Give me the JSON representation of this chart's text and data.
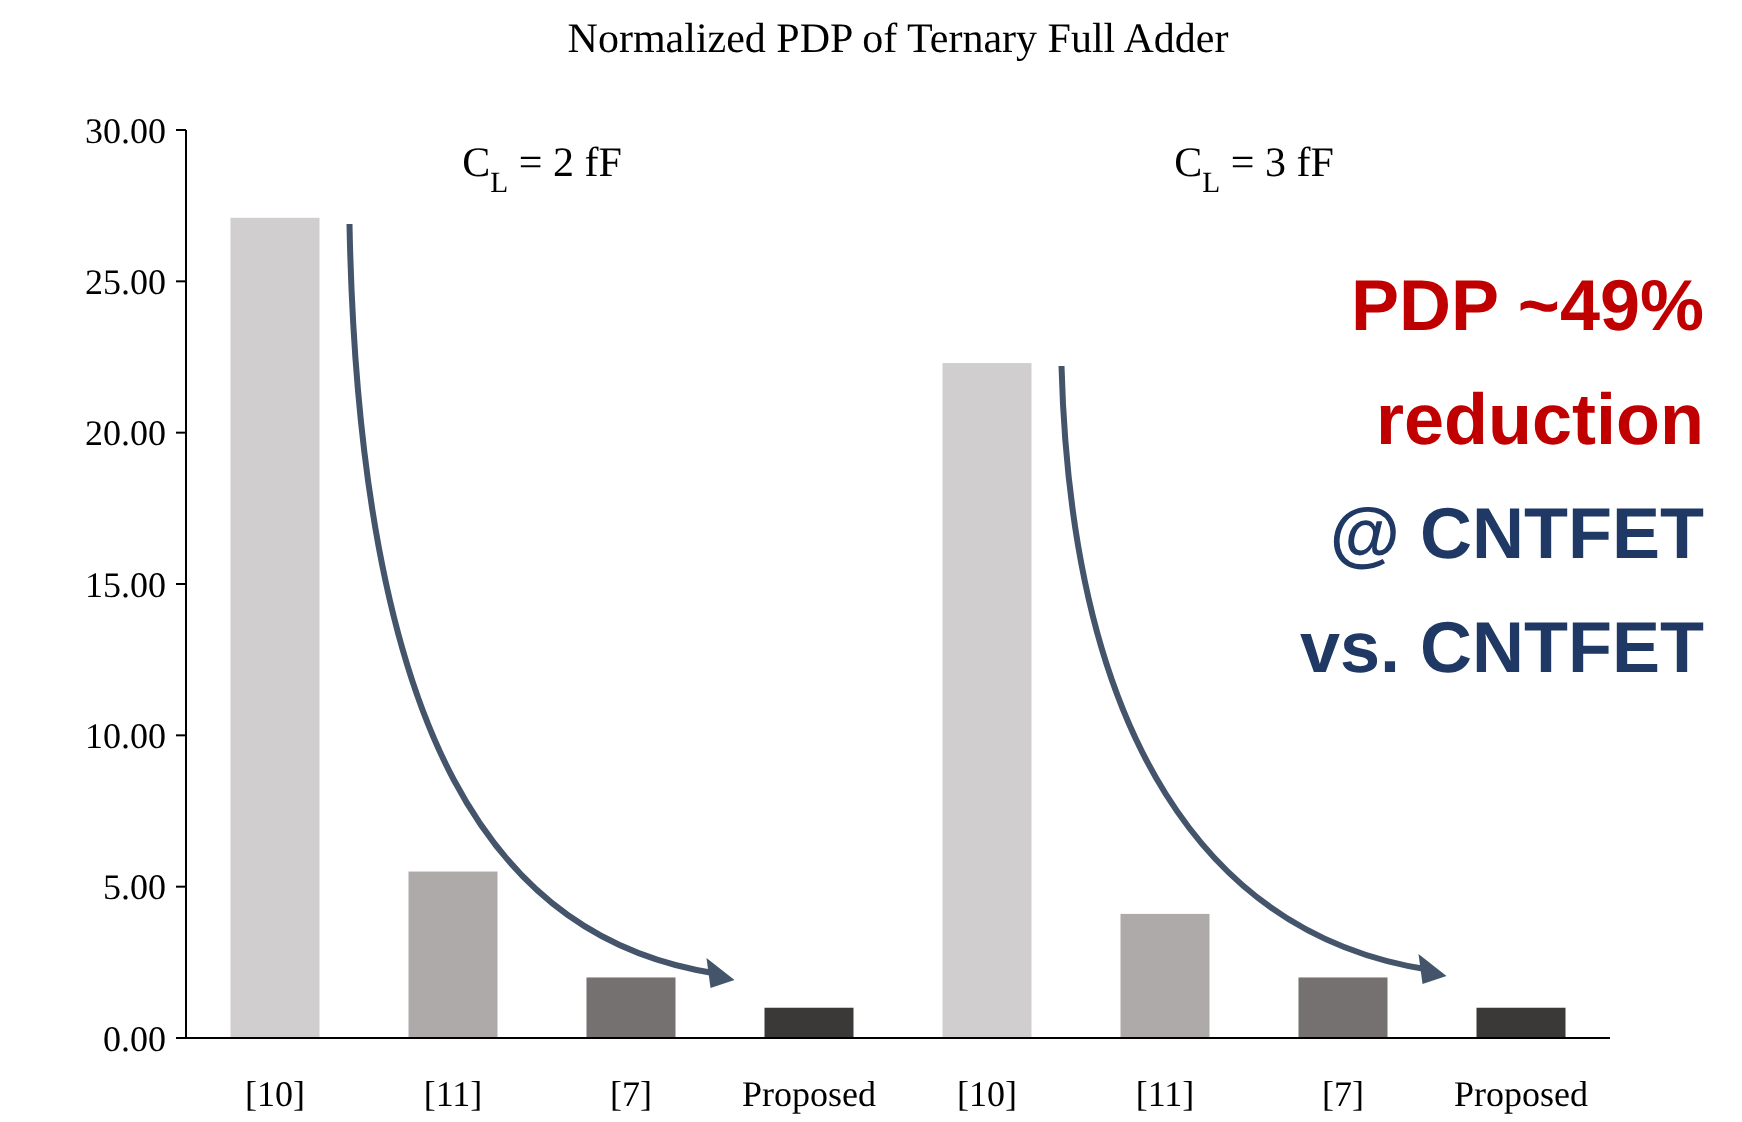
{
  "chart_data": {
    "type": "bar",
    "title": "Normalized PDP of Ternary Full Adder",
    "categories": [
      "[10]",
      "[11]",
      "[7]",
      "Proposed",
      "[10]",
      "[11]",
      "[7]",
      "Proposed"
    ],
    "values": [
      27.1,
      5.5,
      2.0,
      1.0,
      22.3,
      4.1,
      2.0,
      1.0
    ],
    "colors": [
      "#d0cece",
      "#aeaaaa",
      "#767171",
      "#3b3838",
      "#d0cece",
      "#aeaaaa",
      "#767171",
      "#3b3838"
    ],
    "ylim": [
      0,
      30
    ],
    "yticks": [
      {
        "value": 0,
        "label": "0.00"
      },
      {
        "value": 5,
        "label": "5.00"
      },
      {
        "value": 10,
        "label": "10.00"
      },
      {
        "value": 15,
        "label": "15.00"
      },
      {
        "value": 20,
        "label": "20.00"
      },
      {
        "value": 25,
        "label": "25.00"
      },
      {
        "value": 30,
        "label": "30.00"
      }
    ],
    "annotations": [
      "C$_{L}$ = 2 fF",
      "C$_{L}$ = 3 fF",
      "PDP ~49%",
      "reduction",
      "@ CNTFET",
      "vs. CNTFET"
    ],
    "grid": false
  }
}
